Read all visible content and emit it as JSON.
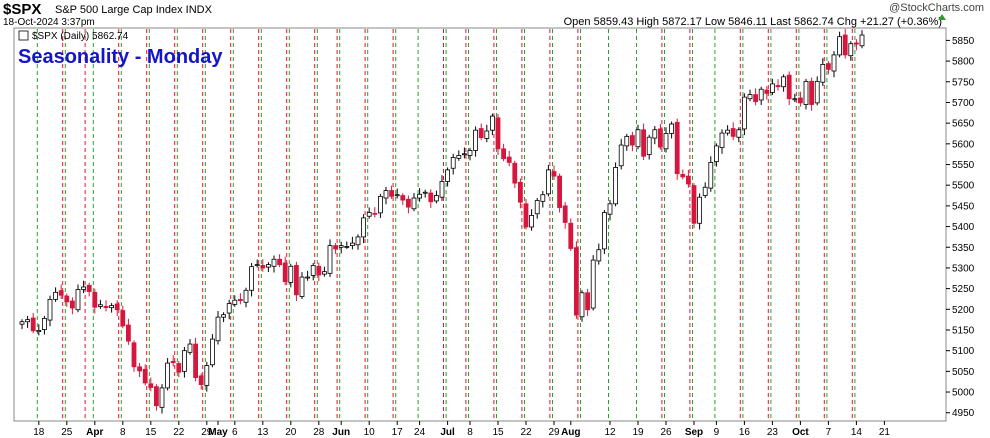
{
  "header": {
    "symbol": "$SPX",
    "description": "S&P 500 Large Cap Index  INDX",
    "datetime": "18-Oct-2024 3:37pm",
    "ohlc": "Open 5859.43  High 5872.17  Low 5846.11  Last 5862.74  Chg +21.27 (+0.36%)",
    "watermark": "@StockCharts.com"
  },
  "colors": {
    "up": "#000000",
    "down": "#d6163c",
    "monday_line": "#2ca02c",
    "friday_line": "#e0142c",
    "annotation": "#1515c8"
  },
  "chart_data": {
    "type": "candlestick",
    "legend": "$SPX (Daily) 5862.74",
    "annotation": "Seasonality - Monday",
    "ylim": [
      4930,
      5880
    ],
    "yticks": [
      4950,
      5000,
      5050,
      5100,
      5150,
      5200,
      5250,
      5300,
      5350,
      5400,
      5450,
      5500,
      5550,
      5600,
      5650,
      5700,
      5750,
      5800,
      5850
    ],
    "xlabels": [
      {
        "label": "18",
        "i": 3,
        "month": false
      },
      {
        "label": "25",
        "i": 8,
        "month": false
      },
      {
        "label": "Apr",
        "i": 13,
        "month": true
      },
      {
        "label": "8",
        "i": 18,
        "month": false
      },
      {
        "label": "15",
        "i": 23,
        "month": false
      },
      {
        "label": "22",
        "i": 28,
        "month": false
      },
      {
        "label": "29",
        "i": 33,
        "month": false
      },
      {
        "label": "May",
        "i": 35,
        "month": true
      },
      {
        "label": "6",
        "i": 38,
        "month": false
      },
      {
        "label": "13",
        "i": 43,
        "month": false
      },
      {
        "label": "20",
        "i": 48,
        "month": false
      },
      {
        "label": "28",
        "i": 53,
        "month": false
      },
      {
        "label": "Jun",
        "i": 57,
        "month": true
      },
      {
        "label": "10",
        "i": 62,
        "month": false
      },
      {
        "label": "17",
        "i": 67,
        "month": false
      },
      {
        "label": "24",
        "i": 71,
        "month": false
      },
      {
        "label": "Jul",
        "i": 76,
        "month": true
      },
      {
        "label": "8",
        "i": 80,
        "month": false
      },
      {
        "label": "15",
        "i": 85,
        "month": false
      },
      {
        "label": "22",
        "i": 90,
        "month": false
      },
      {
        "label": "29",
        "i": 95,
        "month": false
      },
      {
        "label": "Aug",
        "i": 98,
        "month": true
      },
      {
        "label": "12",
        "i": 105,
        "month": false
      },
      {
        "label": "19",
        "i": 110,
        "month": false
      },
      {
        "label": "26",
        "i": 115,
        "month": false
      },
      {
        "label": "Sep",
        "i": 120,
        "month": true
      },
      {
        "label": "9",
        "i": 124,
        "month": false
      },
      {
        "label": "16",
        "i": 129,
        "month": false
      },
      {
        "label": "23",
        "i": 134,
        "month": false
      },
      {
        "label": "Oct",
        "i": 139,
        "month": true
      },
      {
        "label": "7",
        "i": 144,
        "month": false
      },
      {
        "label": "14",
        "i": 149,
        "month": false
      },
      {
        "label": "21",
        "i": 154,
        "month": false
      }
    ],
    "monday_lines": [
      3,
      8,
      13,
      18,
      23,
      28,
      33,
      38,
      43,
      48,
      53,
      57,
      62,
      67,
      71,
      76,
      80,
      85,
      90,
      95,
      100,
      105,
      110,
      115,
      120,
      124,
      129,
      134,
      139,
      144,
      149
    ],
    "friday_lines": [
      7,
      11,
      17,
      22,
      27,
      32,
      37,
      42,
      47,
      52,
      56,
      61,
      66,
      75,
      79,
      84,
      89,
      94,
      99,
      114,
      119,
      128,
      133,
      138,
      143,
      148
    ],
    "closes": [
      5170,
      5175,
      5148,
      5149,
      5178,
      5224,
      5241,
      5234,
      5218,
      5203,
      5248,
      5254,
      5243,
      5205,
      5211,
      5204,
      5209,
      5199,
      5160,
      5123,
      5061,
      5051,
      5022,
      5011,
      4967,
      5010,
      5070,
      5071,
      5048,
      5100,
      5116,
      5035,
      5018,
      5064,
      5128,
      5181,
      5187,
      5214,
      5222,
      5221,
      5246,
      5303,
      5308,
      5300,
      5308,
      5321,
      5308,
      5267,
      5304,
      5235,
      5278,
      5278,
      5306,
      5283,
      5291,
      5354,
      5346,
      5354,
      5352,
      5360,
      5375,
      5421,
      5434,
      5431,
      5473,
      5487,
      5473,
      5477,
      5464,
      5447,
      5469,
      5478,
      5483,
      5460,
      5475,
      5509,
      5537,
      5567,
      5572,
      5576,
      5584,
      5633,
      5615,
      5631,
      5667,
      5588,
      5564,
      5555,
      5505,
      5459,
      5399,
      5427,
      5463,
      5477,
      5537,
      5522,
      5446,
      5410,
      5347,
      5186,
      5240,
      5199,
      5319,
      5344,
      5434,
      5455,
      5543,
      5597,
      5618,
      5597,
      5634,
      5570,
      5616,
      5634,
      5592,
      5625,
      5648,
      5528,
      5520,
      5503,
      5408,
      5471,
      5495,
      5555,
      5595,
      5626,
      5633,
      5618,
      5634,
      5713,
      5719,
      5702,
      5732,
      5722,
      5745,
      5738,
      5762,
      5709,
      5709,
      5699,
      5751,
      5695,
      5751,
      5792,
      5780,
      5815,
      5859,
      5815,
      5842,
      5841,
      5863
    ],
    "bars_drawn": "OHLC values estimated from candle positions; last close 5862.74"
  }
}
